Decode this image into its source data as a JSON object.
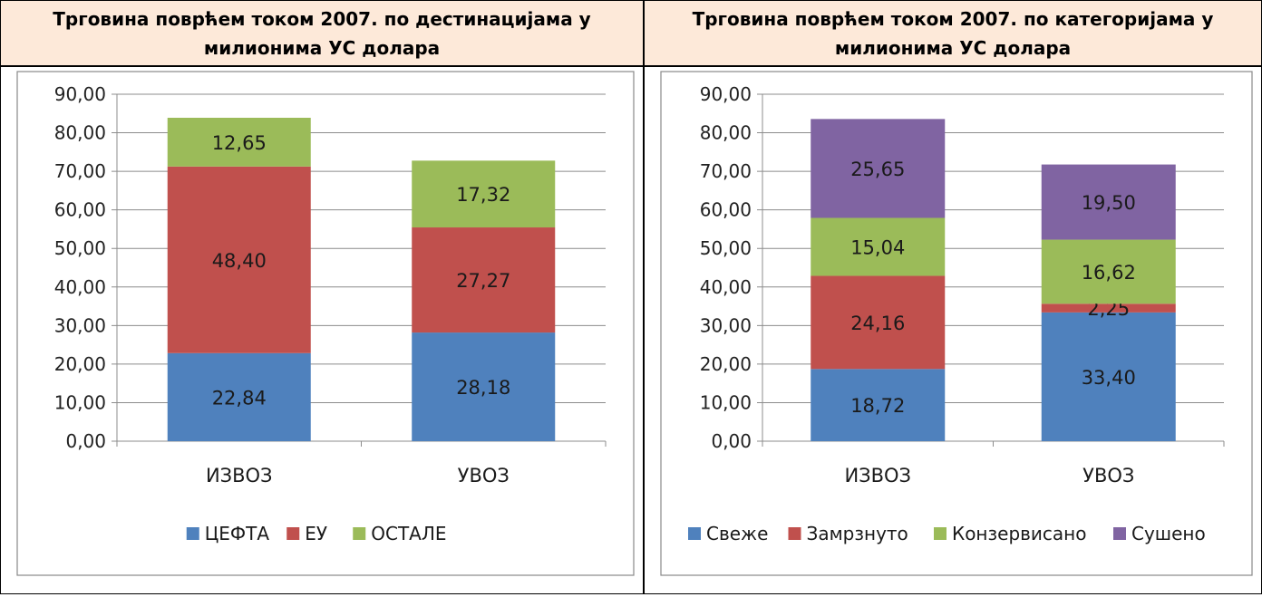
{
  "chart_data": [
    {
      "type": "bar",
      "stacked": true,
      "title": "Трговина поврћем током 2007. по дестинацијама у милионима УС долара",
      "categories": [
        "ИЗВОЗ",
        "УВОЗ"
      ],
      "ylim": [
        0,
        90
      ],
      "yticks": [
        "0,00",
        "10,00",
        "20,00",
        "30,00",
        "40,00",
        "50,00",
        "60,00",
        "70,00",
        "80,00",
        "90,00"
      ],
      "grid": true,
      "legend_position": "bottom",
      "series": [
        {
          "name": "ЦЕФТА",
          "color": "#4f81bd",
          "values": [
            22.84,
            28.18
          ],
          "labels": [
            "22,84",
            "28,18"
          ]
        },
        {
          "name": "ЕУ",
          "color": "#c0504d",
          "values": [
            48.4,
            27.27
          ],
          "labels": [
            "48,40",
            "27,27"
          ]
        },
        {
          "name": "ОСТАЛЕ",
          "color": "#9bbb59",
          "values": [
            12.65,
            17.32
          ],
          "labels": [
            "12,65",
            "17,32"
          ]
        }
      ]
    },
    {
      "type": "bar",
      "stacked": true,
      "title": "Трговина поврћем током 2007. по категоријама у милионима УС долара",
      "categories": [
        "ИЗВОЗ",
        "УВОЗ"
      ],
      "ylim": [
        0,
        90
      ],
      "yticks": [
        "0,00",
        "10,00",
        "20,00",
        "30,00",
        "40,00",
        "50,00",
        "60,00",
        "70,00",
        "80,00",
        "90,00"
      ],
      "grid": true,
      "legend_position": "bottom",
      "series": [
        {
          "name": "Свеже",
          "color": "#4f81bd",
          "values": [
            18.72,
            33.4
          ],
          "labels": [
            "18,72",
            "33,40"
          ]
        },
        {
          "name": "Замрзнуто",
          "color": "#c0504d",
          "values": [
            24.16,
            2.25
          ],
          "labels": [
            "24,16",
            "2,25"
          ]
        },
        {
          "name": "Конзервисано",
          "color": "#9bbb59",
          "values": [
            15.04,
            16.62
          ],
          "labels": [
            "15,04",
            "16,62"
          ]
        },
        {
          "name": "Сушено",
          "color": "#8064a2",
          "values": [
            25.65,
            19.5
          ],
          "labels": [
            "25,65",
            "19,50"
          ]
        }
      ]
    }
  ]
}
